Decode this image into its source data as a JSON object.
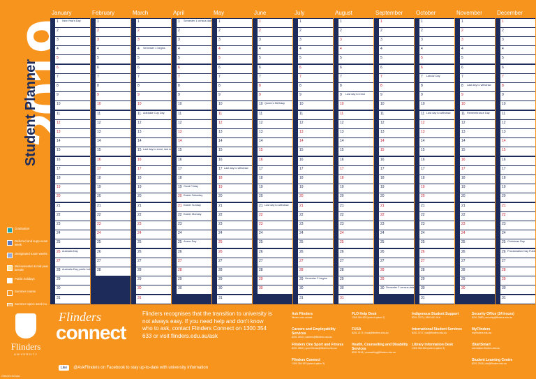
{
  "side": {
    "year": "2019",
    "title": "Student Planner"
  },
  "legend": [
    {
      "label": "Graduation",
      "color": "#1fa5a5"
    },
    {
      "label": "Deferred and supp exam week",
      "color": "#5b7cc4"
    },
    {
      "label": "Designated exam weeks",
      "color": "#8fa8dd"
    },
    {
      "label": "Mid-semester & mid-year breaks",
      "color": "#fbe8a6"
    },
    {
      "label": "Public holidays",
      "color": "#ffffff"
    },
    {
      "label": "Summer exams",
      "color": "#f7941d"
    },
    {
      "label": "Summer topics week no.",
      "color": "#f7b66a"
    },
    {
      "label": "Teaching weeks no. semesters",
      "color": "#ffffff"
    }
  ],
  "months": [
    "January",
    "February",
    "March",
    "April",
    "May",
    "June",
    "July",
    "August",
    "September",
    "October",
    "November",
    "December"
  ],
  "month_start_dow": [
    2,
    5,
    5,
    1,
    3,
    6,
    1,
    4,
    0,
    2,
    5,
    0
  ],
  "month_days": [
    31,
    28,
    31,
    30,
    31,
    30,
    31,
    31,
    30,
    31,
    30,
    31
  ],
  "day_letters": [
    "S",
    "M",
    "T",
    "W",
    "T",
    "F",
    "S"
  ],
  "events": {
    "0-1": "New Year's Day",
    "2-4": "Semester 1 begins",
    "2-11": "Adelaide Cup Day",
    "2-15": "Last day to enrol, last day for census",
    "3-1": "Semester 1 census date",
    "3-19": "Good Friday",
    "3-20": "Easter Saturday",
    "3-21": "Easter Sunday",
    "3-22": "Easter Monday",
    "3-25": "Anzac Day",
    "4-17": "Last day to withdraw",
    "5-10": "Queen's Birthday",
    "5-21": "Last day to withdraw",
    "6-29": "Semester 2 begins",
    "7-9": "Last day to enrol",
    "8-30": "Semester 2 census date",
    "9-7": "Labour Day",
    "9-11": "Last day to withdraw",
    "10-8": "Last day to withdraw",
    "10-11": "Remembrance Day",
    "11-25": "Christmas Day",
    "11-26": "Proclamation Day Public Holiday",
    "0-26": "Australia Day",
    "0-28": "Australia Day public holiday"
  },
  "footer": {
    "logo_name": "Flinders",
    "logo_sub": "UNIVERSITY",
    "code": "CRICOS 00114A",
    "connect_script": "Flinders",
    "connect": "connect",
    "message": "Flinders recognises that the transition to university is not always easy. If you need help and don't know who to ask, contact Flinders Connect on 1300 354 633 or visit flinders.edu.au/ask",
    "like": "Like",
    "facebook": "@AskFlinders on Facebook to stay up-to-date with university information"
  },
  "contacts": [
    {
      "title": "Ask Flinders",
      "detail": "flinders.edu.au/ask"
    },
    {
      "title": "Careers and Employability Services",
      "detail": "8201 2815 | careers@flinders.edu.au"
    },
    {
      "title": "Flinders One Sport and Fitness",
      "detail": "8201 2802 | sport.fitness@flinders.edu.au"
    },
    {
      "title": "Flinders Connect",
      "detail": "1300 354 633 (select option 3)"
    },
    {
      "title": "FLO Help Desk",
      "detail": "1300 354 633 (select option 2)"
    },
    {
      "title": "FUSA",
      "detail": "8201 2171 | fusa@flinders.edu.au"
    },
    {
      "title": "Health, Counselling and Disability Services",
      "detail": "8201 3118 | counselling@flinders.edu.au"
    },
    {
      "title": "Indigenous Student Support",
      "detail": "8201 2070 | 1800 641 916"
    },
    {
      "title": "International Student Services",
      "detail": "8201 3717 | iss@flinders.edu.au"
    },
    {
      "title": "Library Information Desk",
      "detail": "1300 354 633 (select option 3)"
    },
    {
      "title": "Security Office (24 hours)",
      "detail": "8201 2880 | security@flinders.edu.au"
    },
    {
      "title": "MyFlinders",
      "detail": "my.flinders.edu.au"
    },
    {
      "title": "iStartSmart",
      "detail": "orientation.flinders.edu.au"
    },
    {
      "title": "Student Learning Centre",
      "detail": "8201 2518 | slc@flinders.edu.au"
    }
  ]
}
